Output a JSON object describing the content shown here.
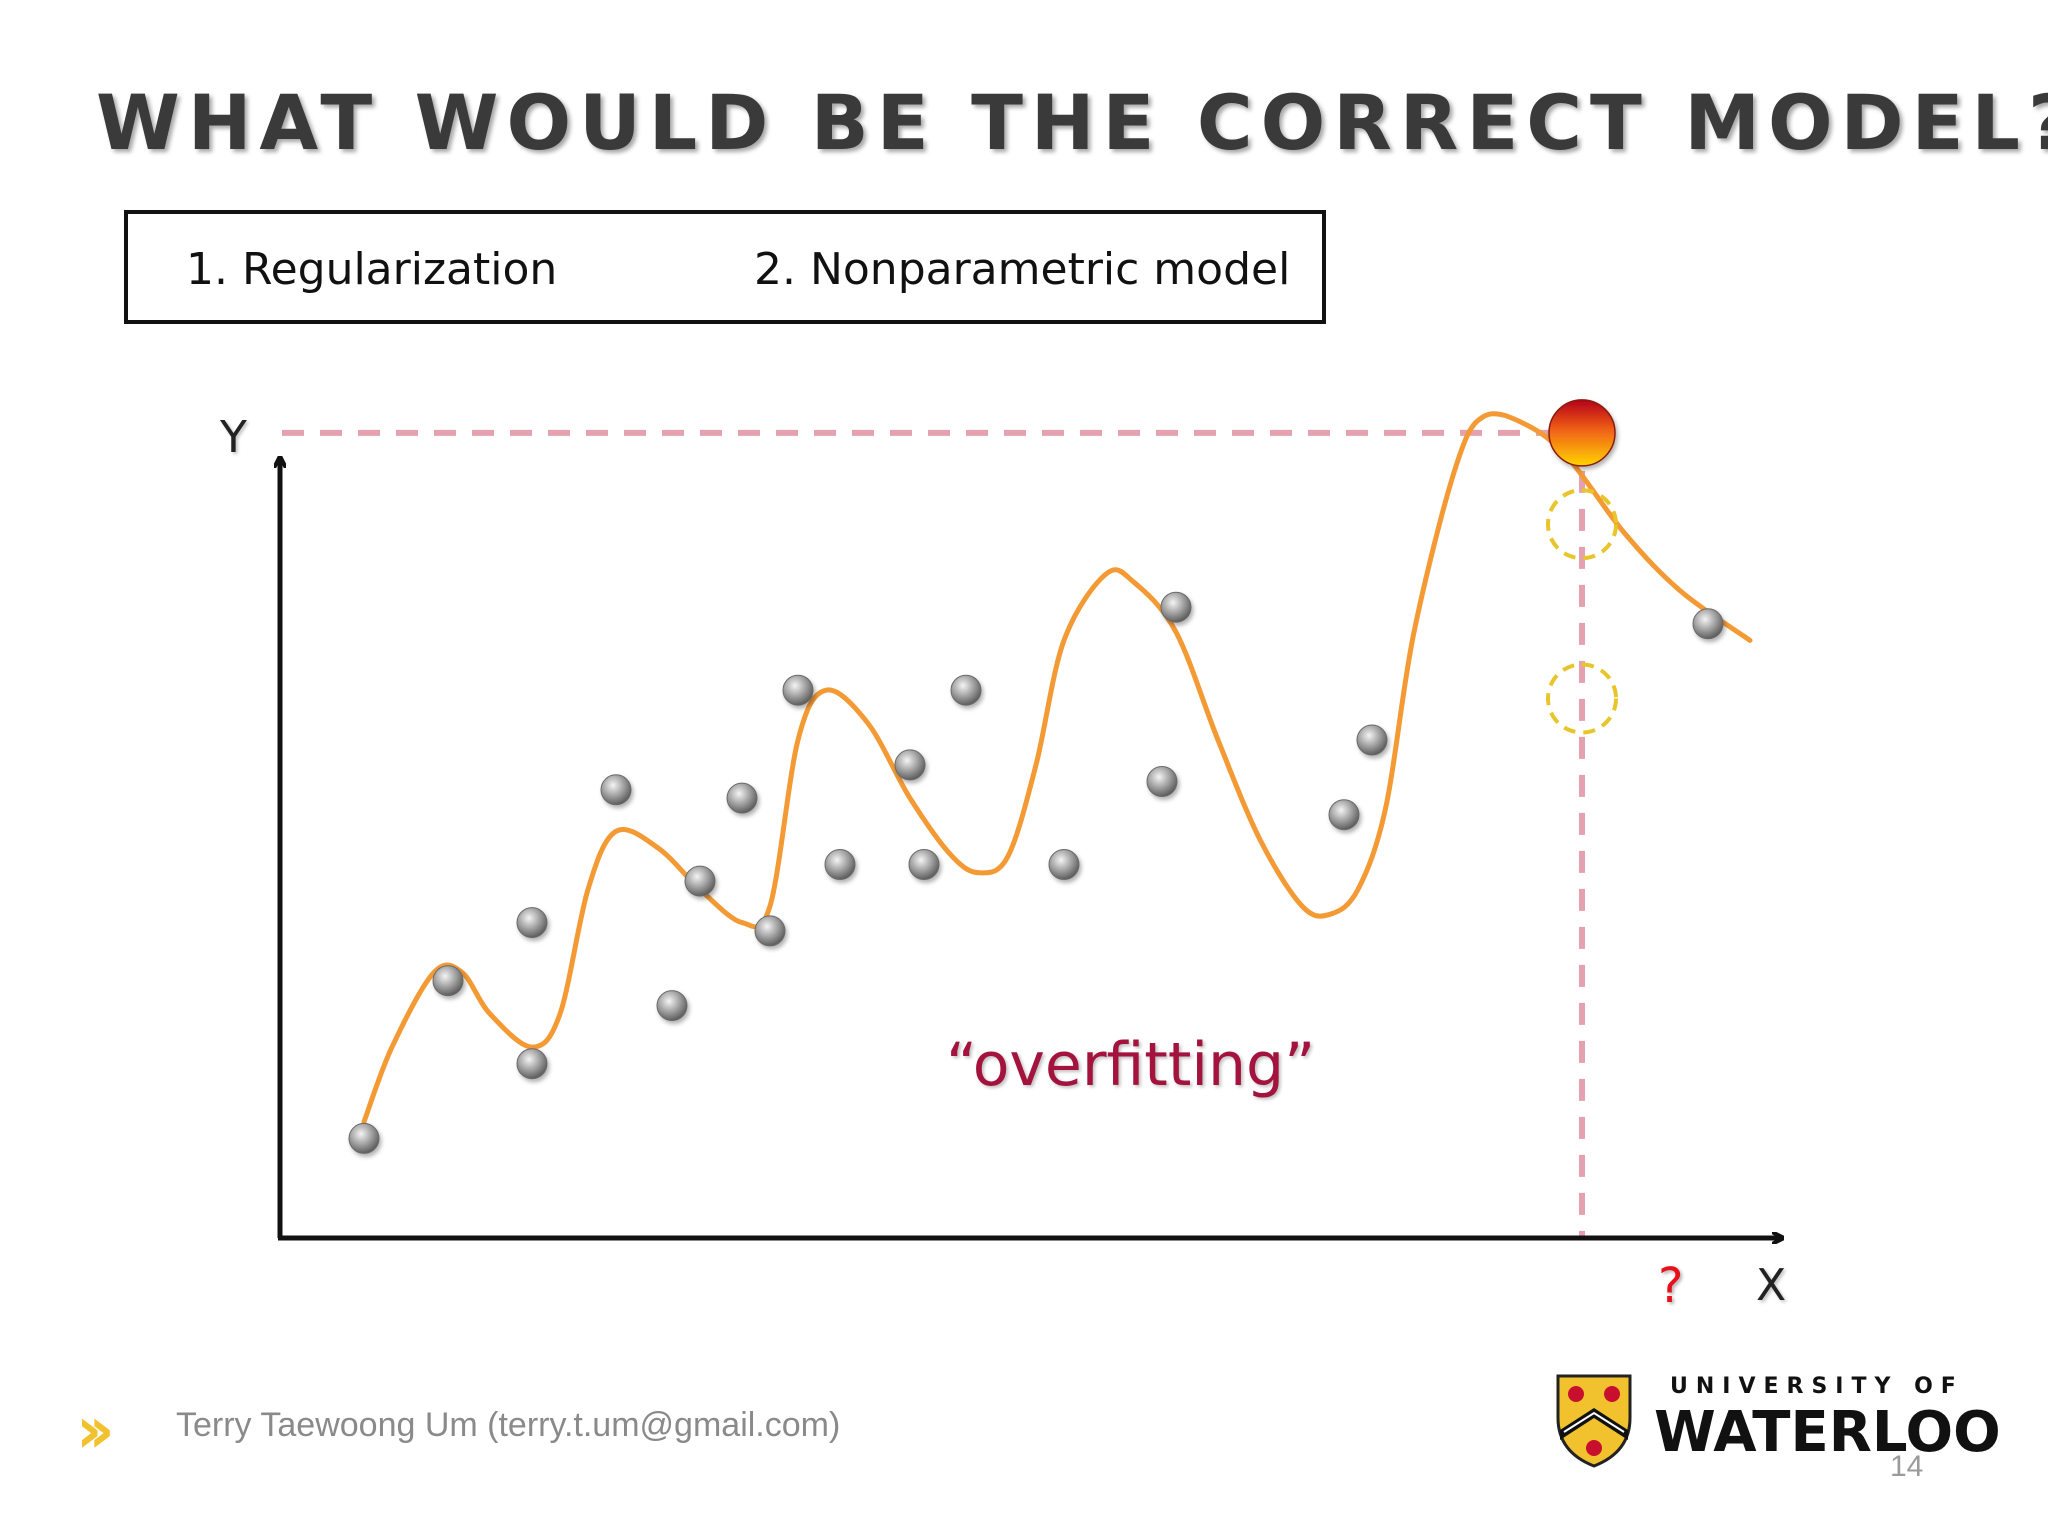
{
  "slide": {
    "title": "WHAT WOULD BE THE CORRECT MODEL?",
    "options": [
      "1. Regularization",
      "2. Nonparametric model"
    ],
    "annotation": "“overfitting”",
    "footer_author": "Terry Taewoong Um (terry.t.um@gmail.com)",
    "page_number": "14",
    "logo": {
      "line1": "UNIVERSITY OF",
      "line2": "WATERLOO"
    }
  },
  "chart_data": {
    "type": "scatter",
    "xlabel": "X",
    "ylabel": "Y",
    "query_label": "?",
    "data_points": [
      [
        0.06,
        0.12
      ],
      [
        0.12,
        0.31
      ],
      [
        0.18,
        0.21
      ],
      [
        0.18,
        0.38
      ],
      [
        0.24,
        0.54
      ],
      [
        0.28,
        0.28
      ],
      [
        0.3,
        0.43
      ],
      [
        0.33,
        0.53
      ],
      [
        0.35,
        0.37
      ],
      [
        0.37,
        0.66
      ],
      [
        0.4,
        0.45
      ],
      [
        0.45,
        0.57
      ],
      [
        0.46,
        0.45
      ],
      [
        0.49,
        0.66
      ],
      [
        0.56,
        0.45
      ],
      [
        0.63,
        0.55
      ],
      [
        0.64,
        0.76
      ],
      [
        0.76,
        0.51
      ],
      [
        0.78,
        0.6
      ],
      [
        1.02,
        0.74
      ]
    ],
    "fit_curve": [
      [
        0.06,
        0.14
      ],
      [
        0.08,
        0.23
      ],
      [
        0.11,
        0.32
      ],
      [
        0.13,
        0.32
      ],
      [
        0.15,
        0.27
      ],
      [
        0.18,
        0.23
      ],
      [
        0.2,
        0.27
      ],
      [
        0.22,
        0.42
      ],
      [
        0.24,
        0.49
      ],
      [
        0.27,
        0.47
      ],
      [
        0.3,
        0.42
      ],
      [
        0.33,
        0.38
      ],
      [
        0.35,
        0.4
      ],
      [
        0.37,
        0.6
      ],
      [
        0.39,
        0.66
      ],
      [
        0.42,
        0.62
      ],
      [
        0.45,
        0.53
      ],
      [
        0.48,
        0.46
      ],
      [
        0.5,
        0.44
      ],
      [
        0.52,
        0.46
      ],
      [
        0.54,
        0.57
      ],
      [
        0.56,
        0.72
      ],
      [
        0.59,
        0.8
      ],
      [
        0.61,
        0.79
      ],
      [
        0.64,
        0.73
      ],
      [
        0.67,
        0.6
      ],
      [
        0.7,
        0.48
      ],
      [
        0.73,
        0.4
      ],
      [
        0.75,
        0.39
      ],
      [
        0.77,
        0.42
      ],
      [
        0.79,
        0.52
      ],
      [
        0.81,
        0.73
      ],
      [
        0.84,
        0.93
      ],
      [
        0.86,
        0.99
      ],
      [
        0.89,
        0.98
      ],
      [
        0.92,
        0.94
      ],
      [
        0.96,
        0.85
      ],
      [
        1.0,
        0.78
      ],
      [
        1.05,
        0.72
      ]
    ],
    "query_point": [
      0.93,
      0.97
    ],
    "candidate_points": [
      [
        0.93,
        0.86
      ],
      [
        0.93,
        0.65
      ]
    ],
    "colors": {
      "curve": "#f39a35",
      "points": "#8c8c8c",
      "guide_lines": "#e4a1b0",
      "query_point_top": "#c8102e",
      "query_point_bottom": "#ffd200",
      "candidates": "#e7c52b"
    }
  }
}
